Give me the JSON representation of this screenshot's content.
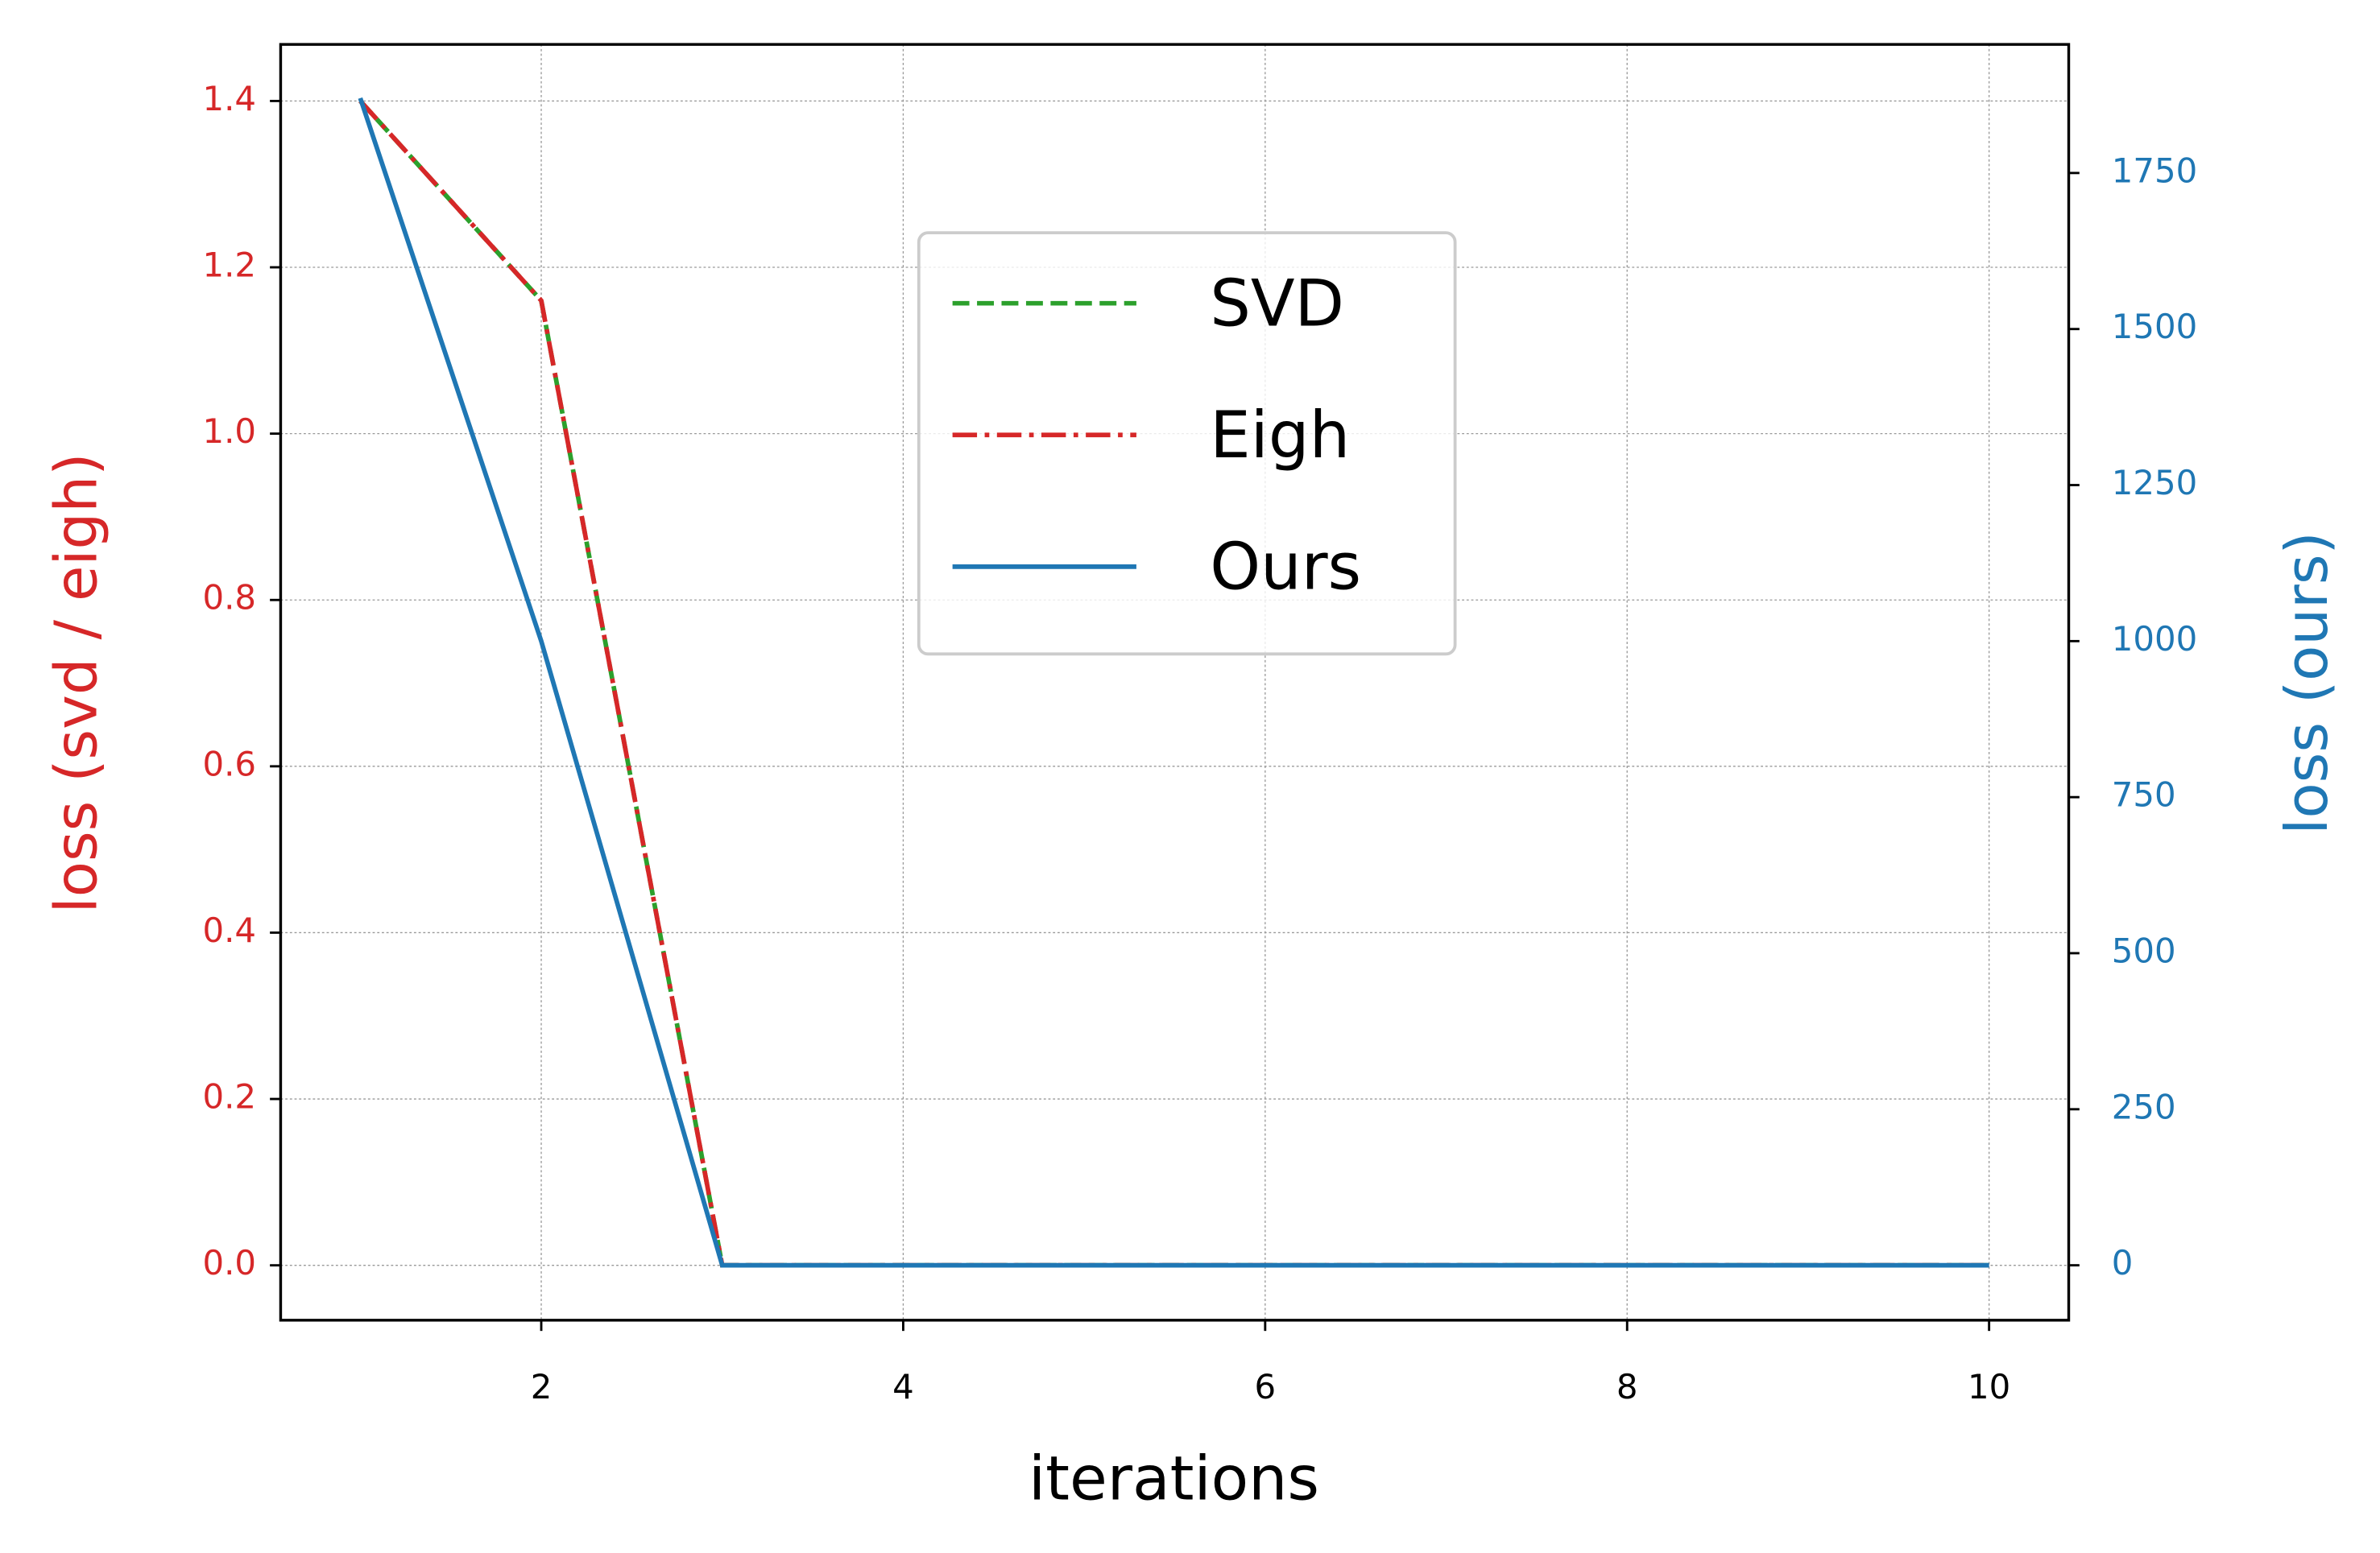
{
  "chart_data": {
    "type": "line",
    "x_label": "iterations",
    "y_label": "loss (svd / eigh)",
    "y2_label": "loss (ours)",
    "x": [
      1,
      2,
      3,
      4,
      5,
      6,
      7,
      8,
      9,
      10
    ],
    "series": [
      {
        "name": "SVD",
        "color": "#2ca02c",
        "linestyle": "dashed",
        "axis": "y",
        "values": [
          1.4,
          1.16,
          0,
          0,
          0,
          0,
          0,
          0,
          0,
          0
        ]
      },
      {
        "name": "Eigh",
        "color": "#d62728",
        "linestyle": "dashdot",
        "axis": "y",
        "values": [
          1.4,
          1.16,
          0,
          0,
          0,
          0,
          0,
          0,
          0,
          0
        ]
      },
      {
        "name": "Ours",
        "color": "#1f77b4",
        "linestyle": "solid",
        "axis": "y2",
        "values": [
          1870,
          1000,
          0,
          0,
          0,
          0,
          0,
          0,
          0,
          0
        ]
      }
    ],
    "xlim": [
      0.56,
      10.44
    ],
    "xticks": [
      2,
      4,
      6,
      8,
      10
    ],
    "ylim": [
      -0.066,
      1.468
    ],
    "yticks": [
      {
        "value": 0,
        "label": "0.0"
      },
      0.2,
      0.4,
      0.6,
      0.8,
      {
        "value": 1,
        "label": "1.0"
      },
      1.2,
      1.4
    ],
    "y2lim": [
      -88,
      1956
    ],
    "y2ticks": [
      0,
      250,
      500,
      750,
      1000,
      1250,
      1500,
      1750
    ],
    "y_color": "#d62728",
    "y2_color": "#1f77b4",
    "grid": true,
    "legend_position": "upper center"
  }
}
